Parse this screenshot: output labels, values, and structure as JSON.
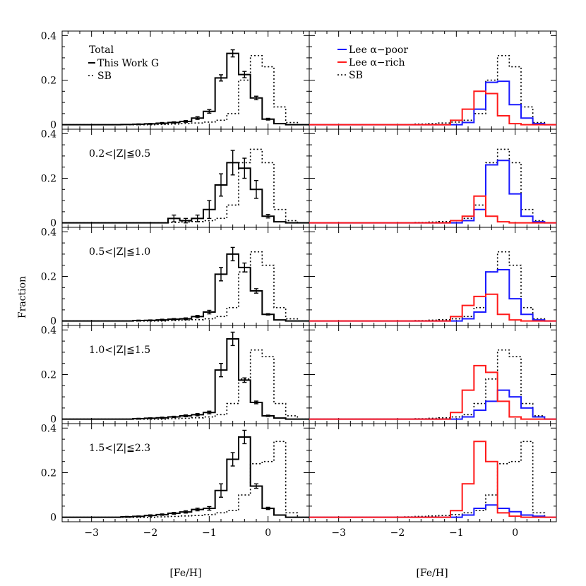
{
  "chart_data": {
    "type": "histogram",
    "xlabel": "[Fe/H]",
    "ylabel": "Fraction",
    "xlim": [
      -3.5,
      0.7
    ],
    "ylim": [
      -0.02,
      0.42
    ],
    "x_ticks": [
      -3,
      -2,
      -1,
      0
    ],
    "x_tick_labels": [
      "−3",
      "−2",
      "−1",
      "0"
    ],
    "y_ticks": [
      0,
      0.2,
      0.4
    ],
    "y_tick_labels": [
      "0",
      "0.2",
      "0.4"
    ],
    "bin_edges": [
      -3.5,
      -3.3,
      -3.1,
      -2.9,
      -2.7,
      -2.5,
      -2.3,
      -2.1,
      -1.9,
      -1.7,
      -1.5,
      -1.3,
      -1.1,
      -0.9,
      -0.7,
      -0.5,
      -0.3,
      -0.1,
      0.1,
      0.3,
      0.5,
      0.7
    ],
    "colors": {
      "this_work": "#000000",
      "sb": "#000000",
      "alpha_poor": "#1a1aff",
      "alpha_rich": "#ff1a1a"
    },
    "left_legend": {
      "heading": "Total",
      "entries": [
        "This Work G",
        "SB"
      ]
    },
    "right_legend": {
      "entries": [
        "Lee α−poor",
        "Lee α−rich",
        "SB"
      ]
    },
    "panels": [
      {
        "label": "Total",
        "this_work": [
          0,
          0,
          0,
          0,
          0,
          0.001,
          0.002,
          0.004,
          0.007,
          0.01,
          0.015,
          0.03,
          0.06,
          0.21,
          0.32,
          0.225,
          0.12,
          0.025,
          0.005,
          0,
          0
        ],
        "this_work_err": [
          0,
          0,
          0,
          0,
          0,
          0,
          0.002,
          0.002,
          0.003,
          0.003,
          0.004,
          0.006,
          0.008,
          0.014,
          0.016,
          0.014,
          0.008,
          0.004,
          0,
          0,
          0
        ],
        "sb": [
          0,
          0,
          0,
          0,
          0,
          0,
          0,
          0,
          0.001,
          0.003,
          0.005,
          0.008,
          0.012,
          0.02,
          0.05,
          0.2,
          0.31,
          0.26,
          0.08,
          0.01,
          0
        ],
        "alpha_poor": [
          0,
          0,
          0,
          0,
          0,
          0,
          0,
          0,
          0,
          0,
          0,
          0,
          0,
          0.01,
          0.07,
          0.19,
          0.195,
          0.09,
          0.03,
          0.005,
          0
        ],
        "alpha_rich": [
          0,
          0,
          0,
          0,
          0,
          0,
          0,
          0,
          0,
          0,
          0,
          0,
          0.02,
          0.07,
          0.15,
          0.14,
          0.04,
          0.005,
          0,
          0,
          0
        ]
      },
      {
        "label": "0.2<|Z|≦0.5",
        "this_work": [
          0,
          0,
          0,
          0,
          0,
          0,
          0,
          0,
          0,
          0.02,
          0.01,
          0.02,
          0.06,
          0.17,
          0.27,
          0.245,
          0.15,
          0.03,
          0.005,
          0,
          0
        ],
        "this_work_err": [
          0,
          0,
          0,
          0,
          0,
          0,
          0,
          0,
          0,
          0.015,
          0.01,
          0.015,
          0.04,
          0.05,
          0.055,
          0.045,
          0.04,
          0.008,
          0,
          0,
          0
        ],
        "sb": [
          0,
          0,
          0,
          0,
          0,
          0,
          0,
          0,
          0,
          0.002,
          0.004,
          0.006,
          0.01,
          0.02,
          0.08,
          0.27,
          0.33,
          0.27,
          0.06,
          0.01,
          0
        ],
        "alpha_poor": [
          0,
          0,
          0,
          0,
          0,
          0,
          0,
          0,
          0,
          0,
          0,
          0,
          0,
          0.01,
          0.06,
          0.26,
          0.28,
          0.13,
          0.03,
          0.005,
          0
        ],
        "alpha_rich": [
          0,
          0,
          0,
          0,
          0,
          0,
          0,
          0,
          0,
          0,
          0,
          0,
          0.01,
          0.03,
          0.12,
          0.03,
          0.005,
          0,
          0,
          0,
          0
        ]
      },
      {
        "label": "0.5<|Z|≦1.0",
        "this_work": [
          0,
          0,
          0,
          0,
          0,
          0,
          0.002,
          0.003,
          0.005,
          0.008,
          0.01,
          0.02,
          0.04,
          0.21,
          0.3,
          0.24,
          0.135,
          0.03,
          0.005,
          0,
          0
        ],
        "this_work_err": [
          0,
          0,
          0,
          0,
          0,
          0,
          0.002,
          0.002,
          0.003,
          0.003,
          0.004,
          0.005,
          0.008,
          0.03,
          0.03,
          0.02,
          0.01,
          0.003,
          0,
          0,
          0
        ],
        "sb": [
          0,
          0,
          0,
          0,
          0,
          0,
          0,
          0,
          0,
          0.002,
          0.004,
          0.006,
          0.01,
          0.02,
          0.06,
          0.22,
          0.31,
          0.25,
          0.06,
          0.01,
          0
        ],
        "alpha_poor": [
          0,
          0,
          0,
          0,
          0,
          0,
          0,
          0,
          0,
          0,
          0,
          0,
          0,
          0.01,
          0.04,
          0.22,
          0.23,
          0.1,
          0.03,
          0.005,
          0
        ],
        "alpha_rich": [
          0,
          0,
          0,
          0,
          0,
          0,
          0,
          0,
          0,
          0,
          0,
          0,
          0.02,
          0.07,
          0.11,
          0.12,
          0.03,
          0.005,
          0,
          0,
          0
        ]
      },
      {
        "label": "1.0<|Z|≦1.5",
        "this_work": [
          0,
          0,
          0,
          0,
          0,
          0,
          0.002,
          0.004,
          0.006,
          0.01,
          0.015,
          0.02,
          0.03,
          0.22,
          0.36,
          0.175,
          0.075,
          0.015,
          0.005,
          0,
          0
        ],
        "this_work_err": [
          0,
          0,
          0,
          0,
          0,
          0,
          0.002,
          0.002,
          0.003,
          0.003,
          0.004,
          0.005,
          0.006,
          0.03,
          0.03,
          0.01,
          0.006,
          0.003,
          0,
          0,
          0
        ],
        "sb": [
          0,
          0,
          0,
          0,
          0,
          0,
          0,
          0,
          0,
          0.002,
          0.004,
          0.006,
          0.01,
          0.02,
          0.07,
          0.18,
          0.31,
          0.28,
          0.07,
          0.015,
          0
        ],
        "alpha_poor": [
          0,
          0,
          0,
          0,
          0,
          0,
          0,
          0,
          0,
          0,
          0,
          0,
          0,
          0.01,
          0.04,
          0.08,
          0.13,
          0.1,
          0.05,
          0.01,
          0
        ],
        "alpha_rich": [
          0,
          0,
          0,
          0,
          0,
          0,
          0,
          0,
          0,
          0,
          0,
          0,
          0.03,
          0.13,
          0.24,
          0.21,
          0.08,
          0.01,
          0,
          0,
          0
        ]
      },
      {
        "label": "1.5<|Z|≦2.3",
        "this_work": [
          0,
          0,
          0,
          0,
          0,
          0.002,
          0.004,
          0.008,
          0.012,
          0.018,
          0.024,
          0.035,
          0.04,
          0.12,
          0.26,
          0.36,
          0.14,
          0.04,
          0.01,
          0,
          0
        ],
        "this_work_err": [
          0,
          0,
          0,
          0,
          0,
          0.002,
          0.002,
          0.003,
          0.003,
          0.004,
          0.005,
          0.006,
          0.008,
          0.03,
          0.03,
          0.03,
          0.01,
          0.005,
          0,
          0,
          0
        ],
        "sb": [
          0,
          0,
          0,
          0,
          0,
          0,
          0,
          0,
          0.002,
          0.004,
          0.006,
          0.008,
          0.012,
          0.02,
          0.03,
          0.1,
          0.24,
          0.25,
          0.34,
          0.02,
          0
        ],
        "alpha_poor": [
          0,
          0,
          0,
          0,
          0,
          0,
          0,
          0,
          0,
          0,
          0,
          0,
          0,
          0.01,
          0.04,
          0.055,
          0.04,
          0.025,
          0.01,
          0.005,
          0
        ],
        "alpha_rich": [
          0,
          0,
          0,
          0,
          0,
          0,
          0,
          0,
          0,
          0,
          0,
          0,
          0.03,
          0.15,
          0.34,
          0.25,
          0.02,
          0.005,
          0,
          0,
          0
        ]
      }
    ]
  }
}
